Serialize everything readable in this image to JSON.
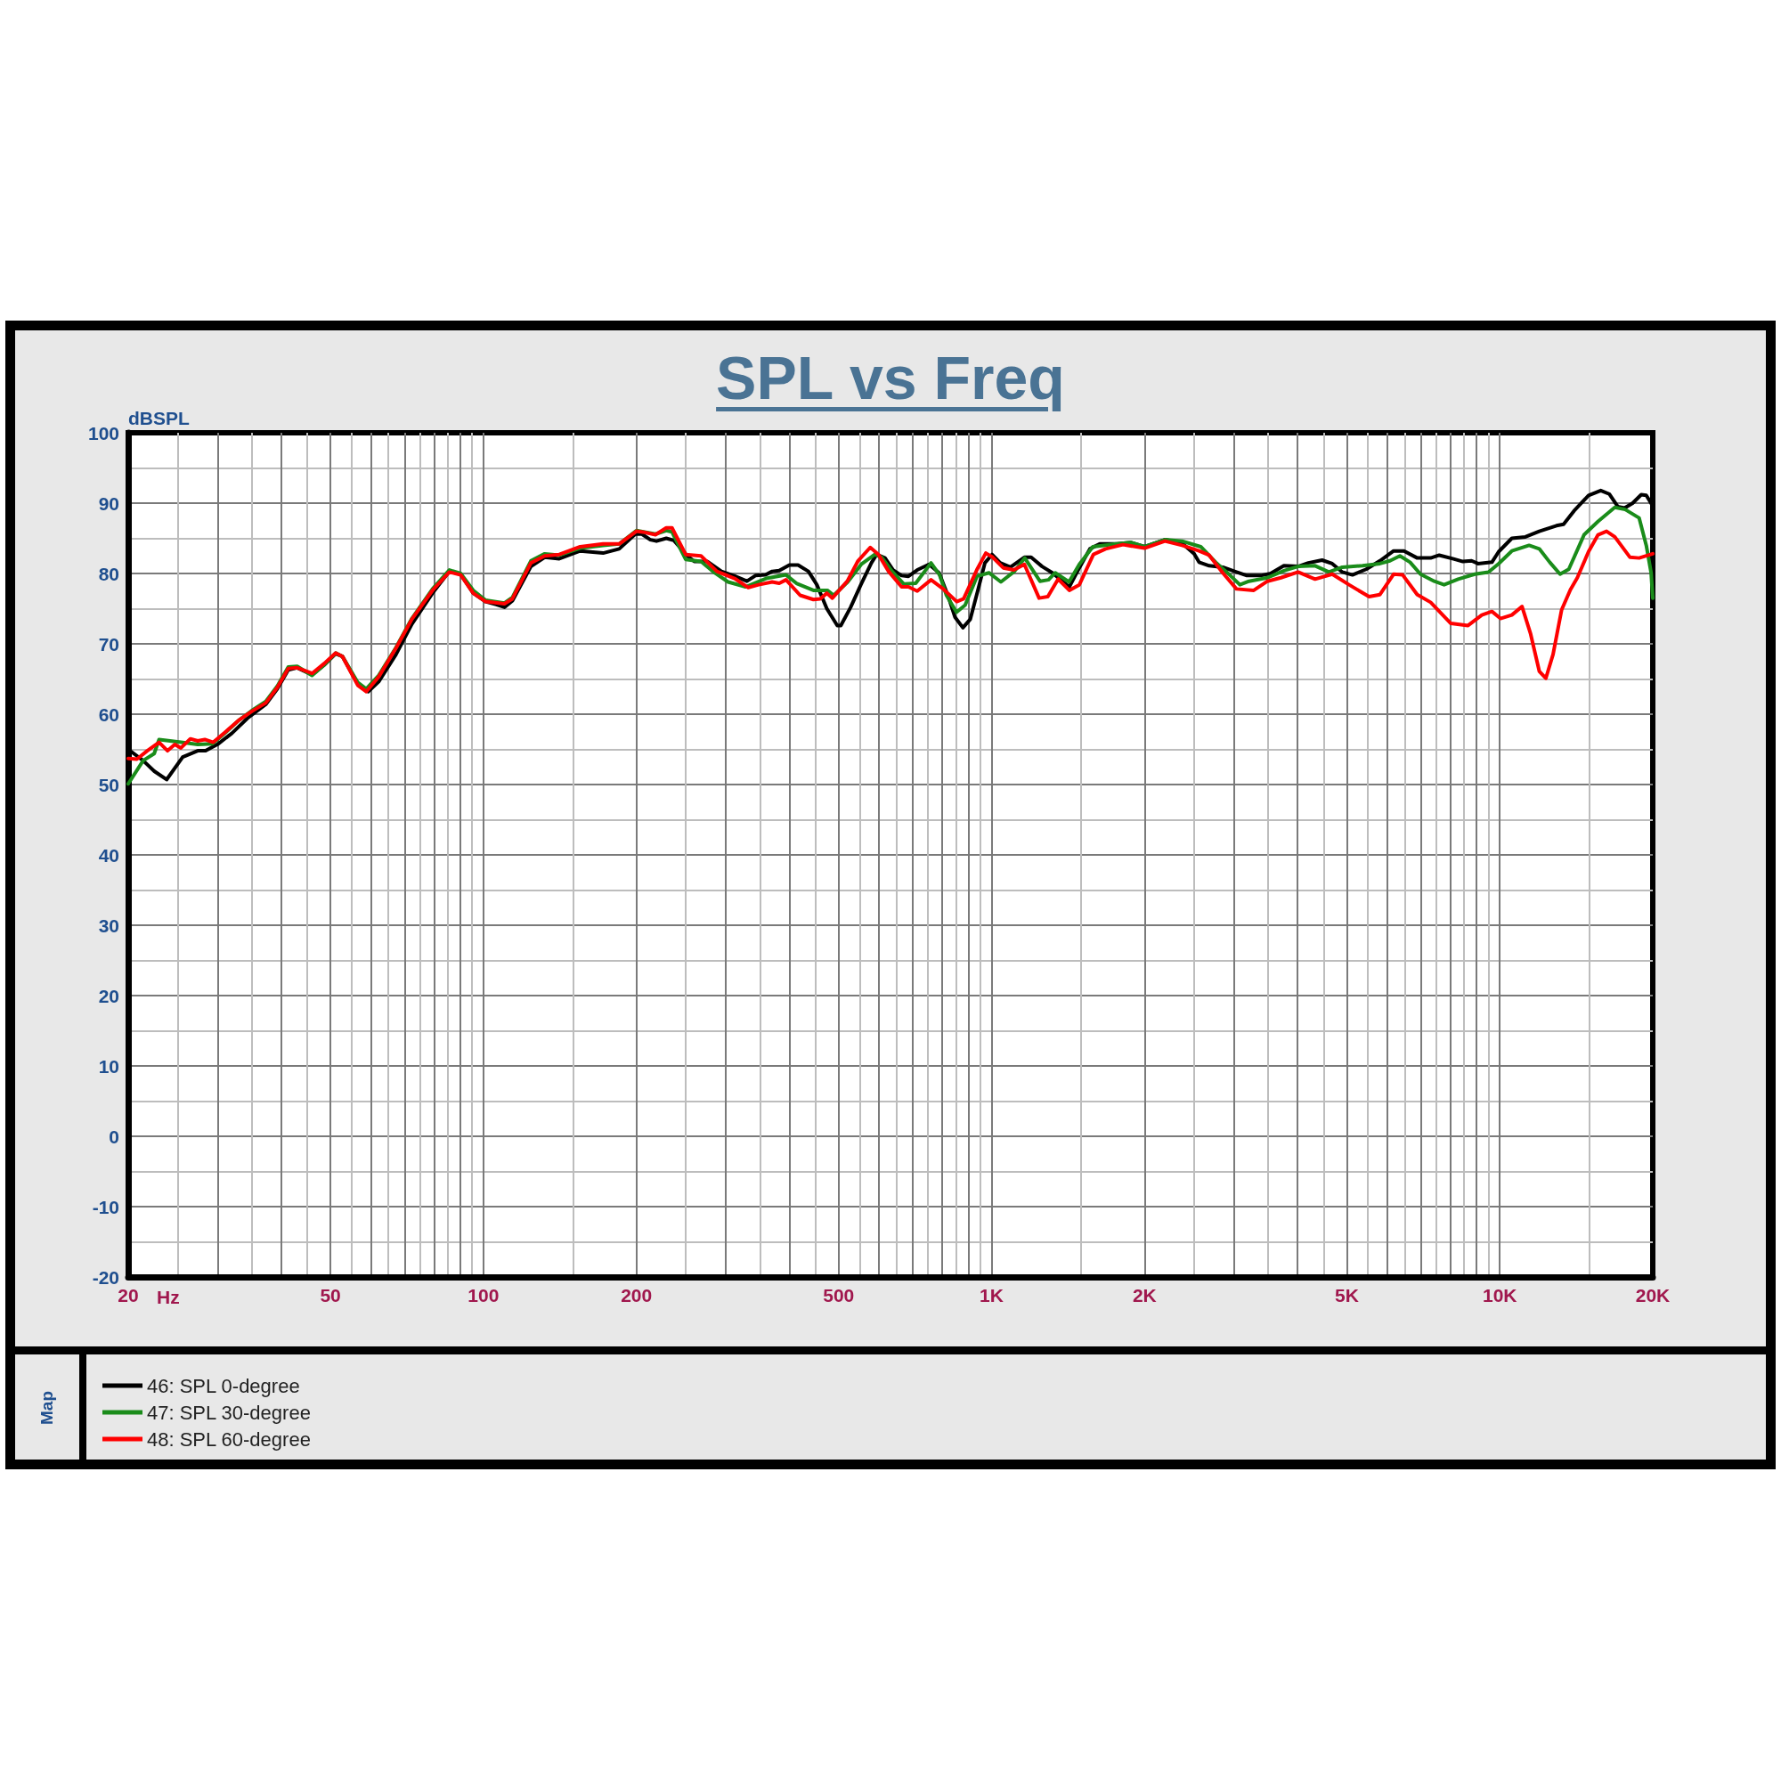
{
  "chart_data": {
    "type": "line",
    "title": "SPL vs Freq",
    "xlabel": "Hz",
    "ylabel": "dBSPL",
    "annotations": [
      "Map"
    ],
    "log": "x",
    "grid": true,
    "legend": "bottom left",
    "marker": "none",
    "xlim": [
      20,
      20000
    ],
    "xticks": [
      20,
      {
        "value": 25,
        "label": null
      },
      {
        "value": 30,
        "label": null
      },
      {
        "value": 35,
        "label": null
      },
      {
        "value": 40,
        "label": null
      },
      {
        "value": 45,
        "label": null
      },
      50,
      {
        "value": 55,
        "label": null
      },
      {
        "value": 60,
        "label": null
      },
      {
        "value": 65,
        "label": null
      },
      {
        "value": 70,
        "label": null
      },
      {
        "value": 75,
        "label": null
      },
      {
        "value": 80,
        "label": null
      },
      {
        "value": 85,
        "label": null
      },
      {
        "value": 90,
        "label": null
      },
      {
        "value": 95,
        "label": null
      },
      100,
      {
        "value": 150,
        "label": null
      },
      200,
      {
        "value": 250,
        "label": null
      },
      {
        "value": 300,
        "label": null
      },
      {
        "value": 350,
        "label": null
      },
      {
        "value": 400,
        "label": null
      },
      {
        "value": 450,
        "label": null
      },
      500,
      {
        "value": 550,
        "label": null
      },
      {
        "value": 600,
        "label": null
      },
      {
        "value": 650,
        "label": null
      },
      {
        "value": 700,
        "label": null
      },
      {
        "value": 750,
        "label": null
      },
      {
        "value": 800,
        "label": null
      },
      {
        "value": 850,
        "label": null
      },
      {
        "value": 900,
        "label": null
      },
      {
        "value": 950,
        "label": null
      },
      {
        "value": 1000,
        "label": "1K"
      },
      {
        "value": 1500,
        "label": null
      },
      {
        "value": 2000,
        "label": "2K"
      },
      {
        "value": 2500,
        "label": null
      },
      {
        "value": 3000,
        "label": null
      },
      {
        "value": 3500,
        "label": null
      },
      {
        "value": 4000,
        "label": null
      },
      {
        "value": 4500,
        "label": null
      },
      {
        "value": 5000,
        "label": "5K"
      },
      {
        "value": 5500,
        "label": null
      },
      {
        "value": 6000,
        "label": null
      },
      {
        "value": 6500,
        "label": null
      },
      {
        "value": 7000,
        "label": null
      },
      {
        "value": 7500,
        "label": null
      },
      {
        "value": 8000,
        "label": null
      },
      {
        "value": 8500,
        "label": null
      },
      {
        "value": 9000,
        "label": null
      },
      {
        "value": 9500,
        "label": null
      },
      {
        "value": 10000,
        "label": "10K"
      },
      {
        "value": 15000,
        "label": null
      },
      {
        "value": 20000,
        "label": "20K"
      }
    ],
    "ylim": [
      -20,
      100
    ],
    "yticks": [
      -20,
      {
        "value": -15,
        "label": null
      },
      -10,
      {
        "value": -5,
        "label": null
      },
      0,
      {
        "value": 5,
        "label": null
      },
      10,
      {
        "value": 15,
        "label": null
      },
      20,
      {
        "value": 25,
        "label": null
      },
      30,
      {
        "value": 35,
        "label": null
      },
      40,
      {
        "value": 45,
        "label": null
      },
      50,
      {
        "value": 55,
        "label": null
      },
      60,
      {
        "value": 65,
        "label": null
      },
      70,
      {
        "value": 75,
        "label": null
      },
      80,
      {
        "value": 85,
        "label": null
      },
      90,
      {
        "value": 95,
        "label": null
      },
      100
    ],
    "series": [
      {
        "name": "46: SPL 0-degree",
        "color": "#000000",
        "x": [
          20,
          21.4,
          22.5,
          23.8,
          25.6,
          27.4,
          28.4,
          30.1,
          32,
          34.3,
          37.3,
          39.3,
          41.3,
          43,
          46,
          48.6,
          51.2,
          52.8,
          56.6,
          59.3,
          62.2,
          67.3,
          72.3,
          79.4,
          85.7,
          90.2,
          95.5,
          101,
          106,
          110,
          114,
          124,
          132,
          141,
          155,
          172,
          185,
          199,
          205,
          213,
          219,
          229,
          237,
          252,
          260,
          276,
          294,
          313,
          330,
          343,
          359,
          370,
          382,
          400,
          416,
          436,
          453,
          474,
          497,
          505,
          528,
          553,
          580,
          594,
          617,
          640,
          665,
          686,
          714,
          753,
          788,
          820,
          847,
          878,
          908,
          942,
          970,
          1002,
          1040,
          1089,
          1160,
          1196,
          1257,
          1317,
          1378,
          1422,
          1488,
          1561,
          1632,
          1767,
          1878,
          2000,
          2193,
          2370,
          2504,
          2560,
          2680,
          2850,
          3033,
          3180,
          3385,
          3540,
          3760,
          4010,
          4200,
          4470,
          4680,
          4900,
          5130,
          5460,
          5810,
          6180,
          6480,
          6880,
          7310,
          7600,
          8080,
          8460,
          8800,
          9060,
          9650,
          9950,
          10560,
          11230,
          11960,
          12930,
          13350,
          14000,
          14950,
          15800,
          16420,
          17070,
          17600,
          18260,
          18980,
          19420,
          20000
        ],
        "values": [
          55.0,
          53.4,
          51.9,
          50.7,
          53.9,
          54.8,
          54.8,
          55.8,
          57.3,
          59.4,
          61.4,
          63.6,
          66.3,
          66.6,
          65.6,
          67.0,
          68.6,
          68.2,
          64.3,
          63.2,
          64.6,
          68.5,
          72.8,
          77.2,
          80.3,
          79.9,
          77.2,
          76.0,
          75.6,
          75.2,
          76.1,
          81.0,
          82.3,
          82.1,
          83.2,
          82.9,
          83.5,
          85.6,
          85.6,
          84.8,
          84.6,
          85.0,
          84.7,
          82.5,
          81.7,
          81.7,
          80.3,
          79.6,
          78.9,
          79.7,
          79.8,
          80.3,
          80.4,
          81.2,
          81.2,
          80.3,
          78.4,
          75.0,
          72.6,
          72.6,
          75.2,
          78.4,
          81.5,
          82.7,
          82.2,
          80.5,
          79.7,
          79.6,
          80.5,
          81.3,
          80.1,
          76.9,
          73.8,
          72.3,
          73.5,
          77.9,
          81.5,
          82.7,
          81.5,
          80.9,
          82.3,
          82.3,
          81.0,
          80.1,
          78.9,
          78.1,
          80.8,
          83.5,
          84.2,
          84.2,
          84.4,
          83.8,
          84.8,
          84.3,
          82.8,
          81.6,
          81.1,
          80.9,
          80.2,
          79.7,
          79.7,
          80.0,
          81.1,
          81.0,
          81.5,
          81.9,
          81.4,
          80.2,
          79.8,
          80.6,
          81.8,
          83.2,
          83.2,
          82.2,
          82.2,
          82.6,
          82.1,
          81.7,
          81.8,
          81.4,
          81.6,
          83.1,
          85.0,
          85.2,
          86.0,
          86.8,
          87.0,
          88.9,
          91.1,
          91.8,
          91.3,
          89.5,
          89.3,
          90.0,
          91.2,
          91.1,
          89.6
        ]
      },
      {
        "name": "47: SPL 30-degree",
        "color": "#1a8c1a",
        "x": [
          20,
          21.4,
          22.5,
          23,
          25.4,
          27.4,
          29.3,
          31.1,
          33.1,
          35,
          37.3,
          39.3,
          41.3,
          43,
          46,
          48.6,
          51.2,
          52.8,
          56.6,
          58.8,
          62.2,
          67.3,
          72.3,
          79.4,
          85.7,
          90.2,
          95.5,
          101,
          110,
          114,
          124,
          132,
          141,
          155,
          172,
          185,
          200,
          218,
          229,
          235,
          250,
          268,
          285,
          303,
          328,
          360,
          394,
          413,
          446,
          475,
          489,
          521,
          554,
          589,
          608,
          637,
          672,
          709,
          760,
          790,
          815,
          853,
          887,
          936,
          988,
          1043,
          1109,
          1162,
          1245,
          1294,
          1334,
          1420,
          1488,
          1582,
          1762,
          1878,
          2000,
          2193,
          2370,
          2580,
          2760,
          2940,
          3080,
          3210,
          3490,
          3760,
          4010,
          4330,
          4610,
          4900,
          5370,
          5810,
          6080,
          6360,
          6660,
          6980,
          7430,
          7770,
          8280,
          8930,
          9500,
          9950,
          10560,
          11420,
          11960,
          12540,
          13140,
          13670,
          14650,
          15610,
          16840,
          17650,
          18800,
          19420,
          19850,
          20000
        ],
        "values": [
          50.1,
          53.4,
          54.4,
          56.4,
          56.0,
          55.7,
          55.8,
          57.4,
          59.2,
          60.5,
          61.8,
          64.0,
          66.7,
          66.8,
          65.5,
          67.0,
          68.7,
          68.2,
          64.5,
          63.6,
          65.5,
          69.5,
          73.6,
          77.8,
          80.5,
          80.0,
          77.6,
          76.2,
          75.8,
          76.6,
          81.8,
          82.8,
          82.6,
          83.6,
          84.0,
          84.2,
          86.1,
          85.6,
          86.1,
          85.9,
          82.0,
          81.7,
          80.1,
          78.8,
          78.1,
          79.3,
          79.8,
          78.6,
          77.6,
          77.6,
          76.9,
          78.8,
          81.3,
          82.7,
          82.3,
          80.3,
          78.5,
          78.6,
          81.5,
          79.8,
          76.9,
          74.5,
          75.5,
          79.6,
          80.1,
          78.8,
          80.3,
          82.2,
          78.9,
          79.1,
          80.1,
          78.8,
          81.3,
          83.8,
          84.2,
          84.4,
          83.8,
          84.8,
          84.6,
          83.8,
          81.6,
          79.8,
          78.4,
          78.9,
          79.4,
          80.4,
          81.0,
          81.1,
          80.2,
          80.9,
          81.1,
          81.4,
          81.8,
          82.5,
          81.6,
          79.9,
          78.9,
          78.4,
          79.2,
          79.9,
          80.2,
          81.4,
          83.2,
          84.0,
          83.5,
          81.6,
          79.9,
          80.6,
          85.5,
          87.4,
          89.4,
          89.1,
          87.9,
          84.0,
          80.1,
          76.5
        ]
      },
      {
        "name": "48: SPL 60-degree",
        "color": "#ff0000",
        "x": [
          20,
          20.8,
          21.8,
          23,
          23.9,
          24.7,
          25.4,
          26.5,
          27.4,
          28.3,
          29.4,
          31.1,
          33.1,
          35,
          37.3,
          39.3,
          41.3,
          43,
          46,
          48.6,
          51.2,
          52.8,
          56.6,
          58.8,
          62.2,
          67.3,
          72.3,
          79.4,
          85.7,
          90.2,
          95.5,
          101,
          110,
          114,
          124,
          132,
          141,
          155,
          172,
          185,
          200,
          206,
          218,
          229,
          235,
          250,
          268,
          288,
          312,
          332,
          348,
          370,
          382,
          394,
          420,
          446,
          460,
          474,
          486,
          520,
          546,
          577,
          599,
          627,
          665,
          686,
          714,
          760,
          800,
          854,
          881,
          935,
          974,
          1005,
          1054,
          1106,
          1160,
          1240,
          1290,
          1352,
          1422,
          1488,
          1586,
          1676,
          1813,
          2000,
          2193,
          2370,
          2560,
          2680,
          2850,
          3033,
          3280,
          3490,
          3710,
          4010,
          4330,
          4680,
          5050,
          5530,
          5810,
          6180,
          6440,
          6880,
          7310,
          8010,
          8660,
          9220,
          9650,
          10030,
          10560,
          11060,
          11500,
          11960,
          12320,
          12730,
          13230,
          13770,
          14210,
          14950,
          15610,
          16220,
          16840,
          18040,
          18800,
          20000
        ],
        "values": [
          53.7,
          53.6,
          54.8,
          56.0,
          54.8,
          55.7,
          55.2,
          56.5,
          56.2,
          56.4,
          56.0,
          57.5,
          59.2,
          60.4,
          61.6,
          63.8,
          66.5,
          66.6,
          65.8,
          67.2,
          68.7,
          68.2,
          64.1,
          63.2,
          65.3,
          69.4,
          73.5,
          77.6,
          80.2,
          79.8,
          77.2,
          76.0,
          75.7,
          76.4,
          81.5,
          82.5,
          82.7,
          83.8,
          84.2,
          84.2,
          86.0,
          85.9,
          85.5,
          86.5,
          86.5,
          82.7,
          82.5,
          80.3,
          79.3,
          78.0,
          78.4,
          78.8,
          78.6,
          79.1,
          76.9,
          76.3,
          76.4,
          77.2,
          76.5,
          78.9,
          81.8,
          83.7,
          82.7,
          80.3,
          78.1,
          78.1,
          77.5,
          79.1,
          77.9,
          76.0,
          76.4,
          80.5,
          82.9,
          82.3,
          80.8,
          80.5,
          81.3,
          76.5,
          76.7,
          79.2,
          77.6,
          78.4,
          82.7,
          83.5,
          84.1,
          83.6,
          84.6,
          84.0,
          83.2,
          82.6,
          80.1,
          77.8,
          77.6,
          78.9,
          79.4,
          80.2,
          79.2,
          79.9,
          78.4,
          76.7,
          77.0,
          79.9,
          79.8,
          77.0,
          75.9,
          72.9,
          72.6,
          74.1,
          74.6,
          73.6,
          74.1,
          75.3,
          71.4,
          66.1,
          65.1,
          68.5,
          74.8,
          77.7,
          79.4,
          83.1,
          85.5,
          86.0,
          85.2,
          82.3,
          82.2,
          82.8
        ]
      }
    ]
  }
}
